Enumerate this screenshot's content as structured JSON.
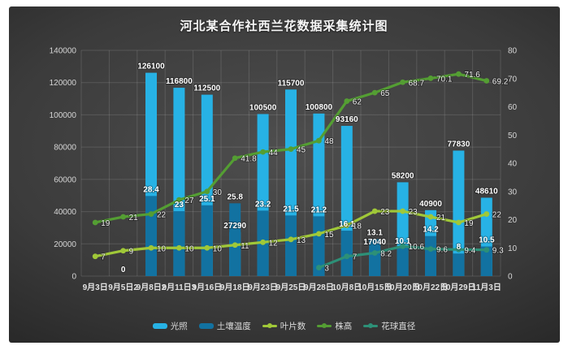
{
  "title": "河北某合作社西兰花数据采集统计图",
  "chart_data": {
    "type": "bar",
    "title": "河北某合作社西兰花数据采集统计图",
    "categories": [
      "9月3日",
      "9月5日2",
      "9月8日2",
      "9月11日3",
      "9月16日",
      "9月18日",
      "9月23日",
      "9月25日",
      "9月28日",
      "10月8日",
      "10月15日",
      "10月20日",
      "10月22日",
      "10月29日",
      "11月3日"
    ],
    "series": [
      {
        "name": "光照",
        "type": "bar",
        "axis": "left",
        "color": "#27b2e5",
        "values": [
          null,
          0,
          126100,
          116800,
          112500,
          27290,
          100500,
          115700,
          100800,
          93160,
          17040,
          58200,
          40900,
          77830,
          48610
        ]
      },
      {
        "name": "土壤温度",
        "type": "bar",
        "axis": "right",
        "color": "#1272a1",
        "values": [
          null,
          null,
          28.4,
          23,
          25.1,
          25.8,
          23.2,
          21.5,
          21.2,
          16.1,
          13.1,
          10.1,
          14.2,
          8,
          10.5
        ]
      },
      {
        "name": "叶片数",
        "type": "line",
        "axis": "right",
        "color": "#a0c838",
        "values": [
          7,
          9,
          10,
          10,
          10,
          11,
          12,
          13,
          15,
          18,
          23,
          23,
          21,
          19,
          22
        ]
      },
      {
        "name": "株高",
        "type": "line",
        "axis": "right",
        "color": "#549e33",
        "values": [
          19,
          21,
          22,
          27,
          30,
          41.8,
          44,
          45,
          48,
          62,
          65,
          68.7,
          70.1,
          71.6,
          69.2
        ]
      },
      {
        "name": "花球直径",
        "type": "line",
        "axis": "right",
        "color": "#2d9077",
        "values": [
          null,
          null,
          null,
          null,
          null,
          null,
          null,
          null,
          3,
          7,
          8.2,
          10.6,
          9.6,
          9.4,
          9.3
        ]
      }
    ],
    "left_axis": {
      "min": 0,
      "max": 140000,
      "step": 20000,
      "ticks": [
        "0",
        "20000",
        "40000",
        "60000",
        "80000",
        "100000",
        "120000",
        "140000"
      ]
    },
    "right_axis": {
      "min": 0,
      "max": 80,
      "step": 10,
      "ticks": [
        "0",
        "10",
        "20",
        "30",
        "40",
        "50",
        "60",
        "70",
        "80"
      ]
    },
    "grid": true,
    "legend_position": "bottom"
  },
  "colors": {
    "page_bg": "#ffffff",
    "panel_center": "#4e4e4e",
    "panel_edge": "#242424",
    "grid_line": "rgba(255,255,255,0.13)",
    "axis_text": "#d6d6d6",
    "title_text": "#f7f7f7"
  }
}
